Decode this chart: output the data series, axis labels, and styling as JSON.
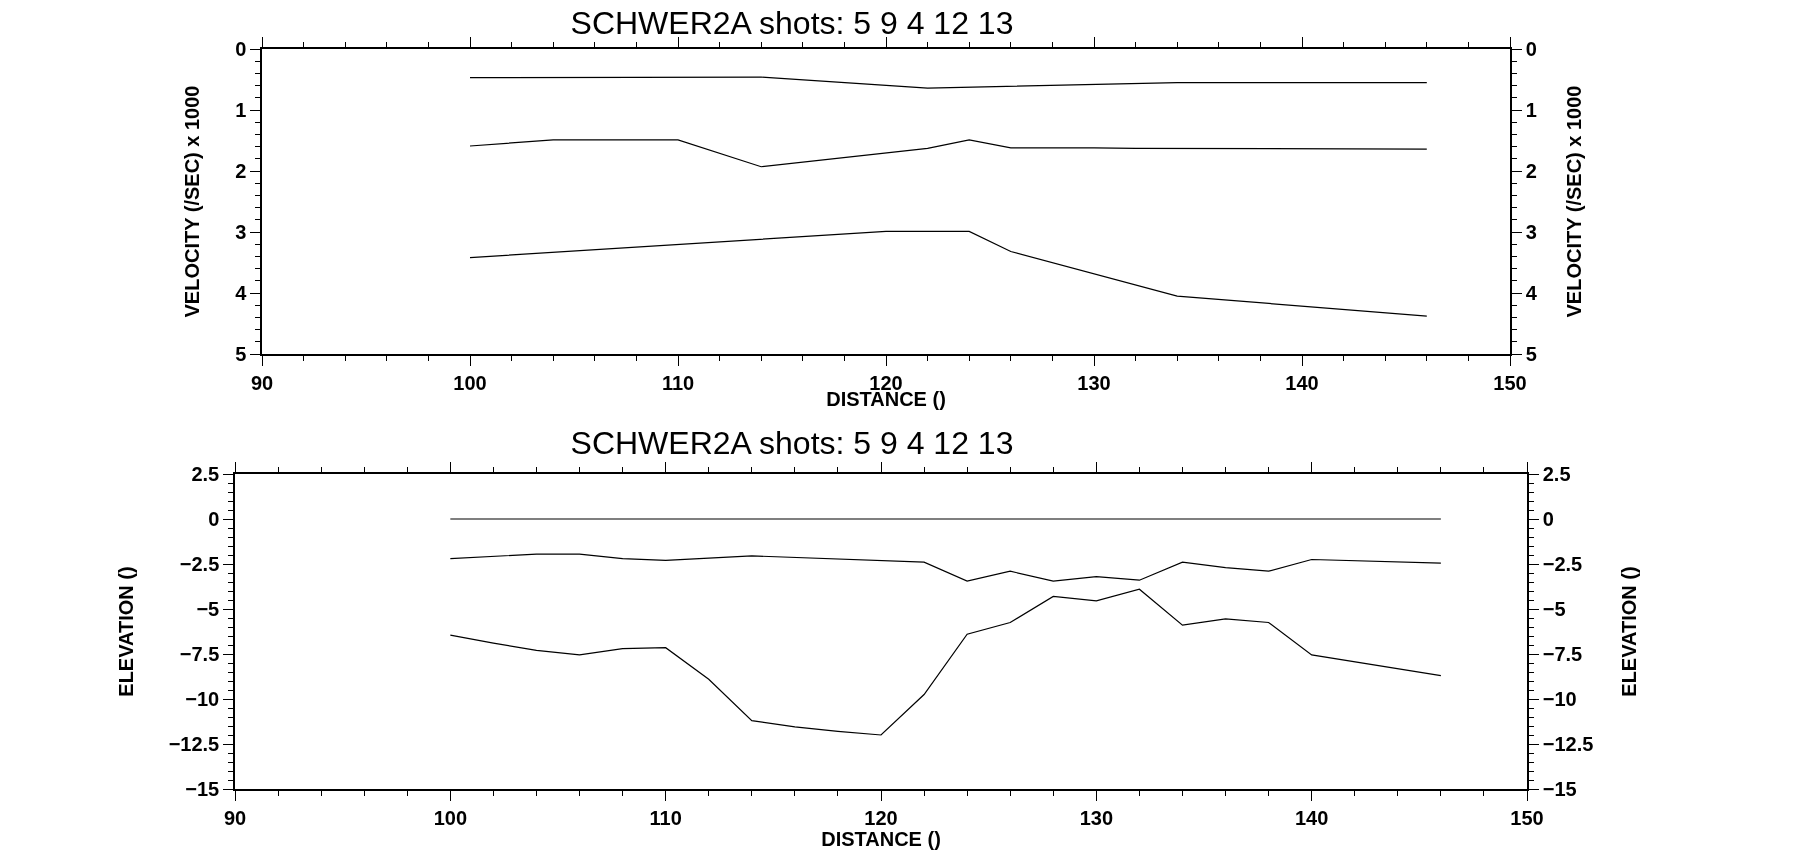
{
  "chart_data": [
    {
      "type": "line",
      "title": "SCHWER2A shots: 5 9 4 12 13",
      "xlabel": "DISTANCE ()",
      "ylabel": "VELOCITY (/SEC) x 1000",
      "y2label": "VELOCITY (/SEC) x 1000",
      "xlim": [
        90,
        150
      ],
      "xticks": [
        90,
        100,
        110,
        120,
        130,
        140,
        150
      ],
      "ylim": [
        5,
        0
      ],
      "yticks": [
        0,
        1,
        2,
        3,
        4,
        5
      ],
      "y2lim": [
        5,
        0
      ],
      "y2ticks": [
        0,
        1,
        2,
        3,
        4,
        5
      ],
      "grid": false,
      "marker": "none",
      "line_style": "solid",
      "series": [
        {
          "color": "#000000",
          "x": [
            100,
            114,
            122,
            134,
            146
          ],
          "values": [
            0.47,
            0.46,
            0.64,
            0.55,
            0.55
          ]
        },
        {
          "color": "#000000",
          "x": [
            100,
            104,
            110,
            114,
            122,
            124,
            126,
            130,
            132,
            146
          ],
          "values": [
            1.59,
            1.49,
            1.49,
            1.93,
            1.63,
            1.49,
            1.62,
            1.62,
            1.63,
            1.64
          ]
        },
        {
          "color": "#000000",
          "x": [
            100,
            120,
            124,
            126,
            134,
            146
          ],
          "values": [
            3.42,
            2.99,
            2.99,
            3.32,
            4.05,
            4.38
          ]
        }
      ]
    },
    {
      "type": "line",
      "title": "SCHWER2A shots: 5 9 4 12 13",
      "xlabel": "DISTANCE ()",
      "ylabel": "ELEVATION ()",
      "y2label": "ELEVATION ()",
      "xlim": [
        90,
        150
      ],
      "xticks": [
        90,
        100,
        110,
        120,
        130,
        140,
        150
      ],
      "ylim": [
        -15,
        2.5
      ],
      "yticks": [
        -15,
        -12.5,
        -10,
        -7.5,
        -5,
        -2.5,
        0,
        2.5
      ],
      "y2lim": [
        -15,
        2.5
      ],
      "y2ticks": [
        -15,
        -12.5,
        -10,
        -7.5,
        -5,
        -2.5,
        0,
        2.5
      ],
      "grid": false,
      "marker": "none",
      "line_style": "solid",
      "series": [
        {
          "color": "#000000",
          "x": [
            100,
            146
          ],
          "values": [
            0,
            0
          ]
        },
        {
          "color": "#000000",
          "x": [
            100,
            104,
            106,
            108,
            110,
            114,
            122,
            124,
            126,
            128,
            130,
            132,
            134,
            136,
            138,
            140,
            146
          ],
          "values": [
            -2.2,
            -1.95,
            -1.95,
            -2.2,
            -2.3,
            -2.05,
            -2.4,
            -3.45,
            -2.9,
            -3.45,
            -3.2,
            -3.4,
            -2.4,
            -2.7,
            -2.9,
            -2.25,
            -2.45
          ]
        },
        {
          "color": "#000000",
          "x": [
            100,
            102,
            104,
            106,
            108,
            110,
            112,
            114,
            116,
            118,
            120,
            122,
            124,
            126,
            128,
            130,
            132,
            134,
            136,
            138,
            140,
            146
          ],
          "values": [
            -6.45,
            -6.9,
            -7.3,
            -7.55,
            -7.2,
            -7.15,
            -8.9,
            -11.2,
            -11.55,
            -11.8,
            -12.0,
            -9.75,
            -6.4,
            -5.75,
            -4.3,
            -4.55,
            -3.9,
            -5.9,
            -5.55,
            -5.75,
            -7.55,
            -8.7
          ]
        }
      ]
    }
  ]
}
